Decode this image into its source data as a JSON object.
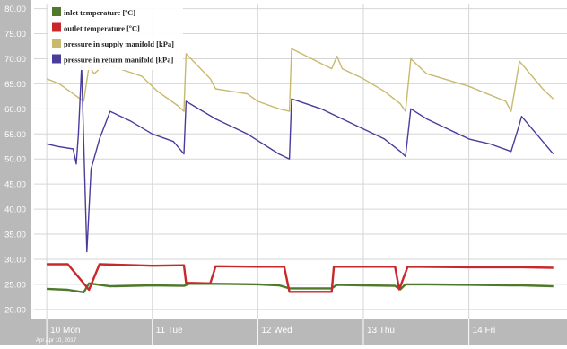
{
  "chart_data": {
    "type": "line",
    "title": "",
    "xlabel": "",
    "ylabel": "",
    "ylim": [
      18,
      81
    ],
    "y_ticks": [
      "80.00",
      "75.00",
      "70.00",
      "65.00",
      "60.00",
      "55.00",
      "50.00",
      "45.00",
      "40.00",
      "35.00",
      "30.00",
      "25.00",
      "20.00"
    ],
    "x_ticks": [
      "10 Mon",
      "11 Tue",
      "12 Wed",
      "13 Thu",
      "14 Fri"
    ],
    "x_footer": "Apr Apr 10, 2017",
    "grid": true,
    "legend_position": "top-left",
    "series": [
      {
        "name": "inlet temperature [ºC]",
        "color": "#4f7a2b",
        "x": [
          10.0,
          10.2,
          10.35,
          10.4,
          10.6,
          11.0,
          11.3,
          11.35,
          11.6,
          12.0,
          12.2,
          12.3,
          12.7,
          12.75,
          13.0,
          13.3,
          13.35,
          13.4,
          13.6,
          14.0,
          14.4,
          14.5,
          14.8
        ],
        "values": [
          24.1,
          23.9,
          23.4,
          25.2,
          24.6,
          24.8,
          24.7,
          25.1,
          25.1,
          25.0,
          24.8,
          24.2,
          24.2,
          24.9,
          24.8,
          24.7,
          24.0,
          25.0,
          25.0,
          24.9,
          24.8,
          24.8,
          24.6
        ]
      },
      {
        "name": "outlet temperature [ºC]",
        "color": "#c8282a",
        "x": [
          10.0,
          10.2,
          10.4,
          10.5,
          11.0,
          11.3,
          11.32,
          11.55,
          11.6,
          12.0,
          12.25,
          12.3,
          12.7,
          12.72,
          13.0,
          13.3,
          13.34,
          13.42,
          14.0,
          14.5,
          14.8
        ],
        "values": [
          29.0,
          29.0,
          23.9,
          29.0,
          28.7,
          28.8,
          25.3,
          25.2,
          28.6,
          28.5,
          28.5,
          23.5,
          23.5,
          28.5,
          28.5,
          28.5,
          24.0,
          28.5,
          28.4,
          28.4,
          28.3
        ]
      },
      {
        "name": "pressure in supply manifold [kPa]",
        "color": "#c8b96e",
        "x": [
          10.0,
          10.12,
          10.25,
          10.35,
          10.4,
          10.45,
          10.55,
          10.9,
          11.05,
          11.25,
          11.3,
          11.32,
          11.55,
          11.6,
          11.9,
          12.0,
          12.2,
          12.3,
          12.32,
          12.7,
          12.75,
          12.8,
          13.0,
          13.2,
          13.35,
          13.4,
          13.45,
          13.6,
          14.0,
          14.35,
          14.4,
          14.48,
          14.7,
          14.8
        ],
        "values": [
          66.0,
          65.0,
          63.0,
          61.5,
          68.5,
          67.0,
          69.0,
          66.5,
          63.5,
          60.5,
          59.5,
          71.0,
          66.0,
          64.0,
          63.0,
          61.5,
          60.0,
          59.5,
          72.0,
          68.0,
          70.5,
          68.0,
          66.0,
          63.5,
          61.0,
          59.5,
          70.0,
          67.0,
          64.5,
          61.5,
          59.5,
          69.5,
          64.0,
          62.0
        ]
      },
      {
        "name": "pressure in return manifold [kPa]",
        "color": "#4a3c9c",
        "x": [
          10.0,
          10.1,
          10.25,
          10.28,
          10.3,
          10.33,
          10.38,
          10.42,
          10.5,
          10.6,
          10.8,
          11.0,
          11.2,
          11.3,
          11.32,
          11.6,
          11.9,
          12.2,
          12.3,
          12.32,
          12.6,
          12.8,
          13.0,
          13.2,
          13.35,
          13.4,
          13.45,
          13.6,
          13.8,
          14.0,
          14.2,
          14.4,
          14.48,
          14.5,
          14.8
        ],
        "values": [
          53.0,
          52.5,
          52.0,
          49.0,
          55.0,
          68.5,
          31.5,
          48.0,
          54.0,
          59.5,
          57.5,
          55.0,
          53.5,
          51.0,
          61.5,
          58.0,
          55.0,
          51.0,
          50.0,
          62.0,
          60.0,
          58.0,
          56.0,
          54.0,
          51.5,
          50.5,
          60.0,
          58.0,
          56.0,
          54.0,
          53.0,
          51.5,
          57.0,
          58.5,
          51.0
        ]
      }
    ]
  }
}
